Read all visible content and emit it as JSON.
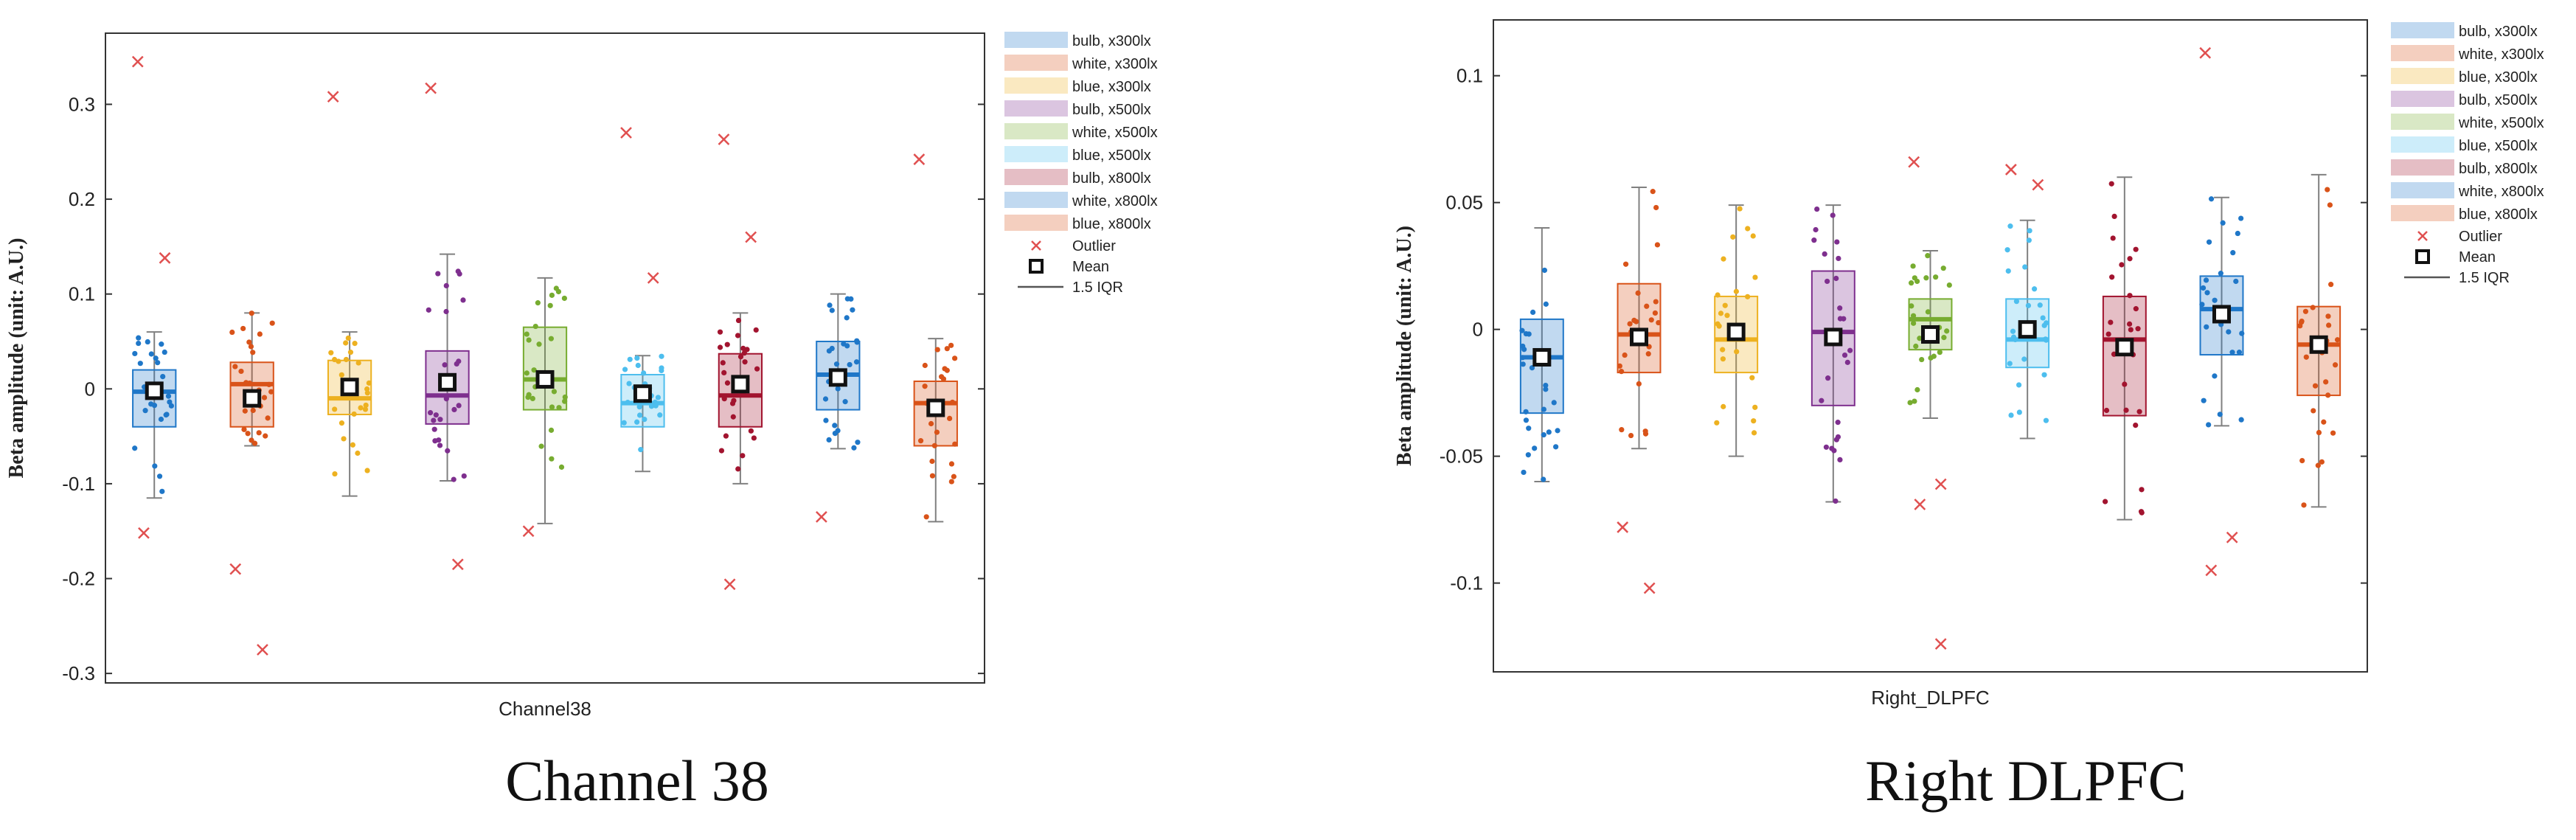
{
  "colors": {
    "bulb_x300lx": "#1f77c8",
    "white_x300lx": "#d95319",
    "blue_x300lx": "#edb120",
    "bulb_x500lx": "#7e2f8e",
    "white_x500lx": "#77ac30",
    "blue_x500lx": "#4dbeee",
    "bulb_x800lx": "#a2142f",
    "white_x800lx": "#1f77c8",
    "blue_x800lx": "#d95319",
    "outlier": "#e05050",
    "whisker": "#808080"
  },
  "chart_data": [
    {
      "type": "box",
      "caption": "Channel 38",
      "xlabel": "Channel38",
      "ylabel": "Beta amplitude (unit: A.U.)",
      "ylim": [
        -0.31,
        0.375
      ],
      "yticks": [
        -0.3,
        -0.2,
        -0.1,
        0,
        0.1,
        0.2,
        0.3
      ],
      "ytick_labels": [
        "-0.3",
        "-0.2",
        "-0.1",
        "0",
        "0.1",
        "0.2",
        "0.3"
      ],
      "legend": {
        "position": "right",
        "entries": [
          "bulb, x300lx",
          "white, x300lx",
          "blue, x300lx",
          "bulb, x500lx",
          "white, x500lx",
          "blue, x500lx",
          "bulb, x800lx",
          "white, x800lx",
          "blue, x800lx"
        ],
        "outlier_label": "Outlier",
        "mean_label": "Mean",
        "iqr_label": "1.5 IQR"
      },
      "series": [
        {
          "name": "bulb, x300lx",
          "q1": -0.04,
          "median": -0.003,
          "q3": 0.02,
          "whisker_low": -0.115,
          "whisker_high": 0.06,
          "mean": -0.002,
          "outliers": [
            0.345,
            0.138,
            -0.152
          ]
        },
        {
          "name": "white, x300lx",
          "q1": -0.04,
          "median": 0.005,
          "q3": 0.028,
          "whisker_low": -0.06,
          "whisker_high": 0.08,
          "mean": -0.01,
          "outliers": [
            -0.19,
            -0.275
          ]
        },
        {
          "name": "blue, x300lx",
          "q1": -0.027,
          "median": -0.01,
          "q3": 0.03,
          "whisker_low": -0.113,
          "whisker_high": 0.06,
          "mean": 0.002,
          "outliers": [
            0.308
          ]
        },
        {
          "name": "bulb, x500lx",
          "q1": -0.037,
          "median": -0.007,
          "q3": 0.04,
          "whisker_low": -0.097,
          "whisker_high": 0.142,
          "mean": 0.007,
          "outliers": [
            0.317,
            -0.185
          ]
        },
        {
          "name": "white, x500lx",
          "q1": -0.022,
          "median": 0.01,
          "q3": 0.065,
          "whisker_low": -0.142,
          "whisker_high": 0.117,
          "mean": 0.01,
          "outliers": [
            -0.15
          ]
        },
        {
          "name": "blue, x500lx",
          "q1": -0.04,
          "median": -0.015,
          "q3": 0.015,
          "whisker_low": -0.087,
          "whisker_high": 0.035,
          "mean": -0.005,
          "outliers": [
            0.27,
            0.117
          ]
        },
        {
          "name": "bulb, x800lx",
          "q1": -0.04,
          "median": -0.007,
          "q3": 0.037,
          "whisker_low": -0.1,
          "whisker_high": 0.08,
          "mean": 0.005,
          "outliers": [
            0.263,
            0.16,
            -0.206
          ]
        },
        {
          "name": "white, x800lx",
          "q1": -0.022,
          "median": 0.015,
          "q3": 0.05,
          "whisker_low": -0.063,
          "whisker_high": 0.1,
          "mean": 0.012,
          "outliers": [
            -0.135
          ]
        },
        {
          "name": "blue, x800lx",
          "q1": -0.06,
          "median": -0.015,
          "q3": 0.008,
          "whisker_low": -0.14,
          "whisker_high": 0.053,
          "mean": -0.02,
          "outliers": [
            0.242
          ]
        }
      ]
    },
    {
      "type": "box",
      "caption": "Right DLPFC",
      "xlabel": "Right_DLPFC",
      "ylabel": "Beta amplitude (unit: A.U.)",
      "ylim": [
        -0.135,
        0.122
      ],
      "yticks": [
        -0.1,
        -0.05,
        0,
        0.05,
        0.1
      ],
      "ytick_labels": [
        "-0.1",
        "-0.05",
        "0",
        "0.05",
        "0.1"
      ],
      "legend": {
        "position": "right",
        "entries": [
          "bulb, x300lx",
          "white, x300lx",
          "blue, x300lx",
          "bulb, x500lx",
          "white, x500lx",
          "blue, x500lx",
          "bulb, x800lx",
          "white, x800lx",
          "blue, x800lx"
        ],
        "outlier_label": "Outlier",
        "mean_label": "Mean",
        "iqr_label": "1.5 IQR"
      },
      "series": [
        {
          "name": "bulb, x300lx",
          "q1": -0.033,
          "median": -0.011,
          "q3": 0.004,
          "whisker_low": -0.06,
          "whisker_high": 0.04,
          "mean": -0.011,
          "outliers": []
        },
        {
          "name": "white, x300lx",
          "q1": -0.017,
          "median": -0.002,
          "q3": 0.018,
          "whisker_low": -0.047,
          "whisker_high": 0.056,
          "mean": -0.003,
          "outliers": [
            -0.078,
            -0.102
          ]
        },
        {
          "name": "blue, x300lx",
          "q1": -0.017,
          "median": -0.004,
          "q3": 0.013,
          "whisker_low": -0.05,
          "whisker_high": 0.049,
          "mean": -0.001,
          "outliers": []
        },
        {
          "name": "bulb, x500lx",
          "q1": -0.03,
          "median": -0.001,
          "q3": 0.023,
          "whisker_low": -0.068,
          "whisker_high": 0.049,
          "mean": -0.003,
          "outliers": []
        },
        {
          "name": "white, x500lx",
          "q1": -0.008,
          "median": 0.004,
          "q3": 0.012,
          "whisker_low": -0.035,
          "whisker_high": 0.031,
          "mean": -0.002,
          "outliers": [
            0.066,
            -0.061,
            -0.069,
            -0.124
          ]
        },
        {
          "name": "blue, x500lx",
          "q1": -0.015,
          "median": -0.004,
          "q3": 0.012,
          "whisker_low": -0.043,
          "whisker_high": 0.043,
          "mean": 0.0,
          "outliers": [
            0.063,
            0.057
          ]
        },
        {
          "name": "bulb, x800lx",
          "q1": -0.034,
          "median": -0.004,
          "q3": 0.013,
          "whisker_low": -0.075,
          "whisker_high": 0.06,
          "mean": -0.007,
          "outliers": []
        },
        {
          "name": "white, x800lx",
          "q1": -0.01,
          "median": 0.008,
          "q3": 0.021,
          "whisker_low": -0.038,
          "whisker_high": 0.052,
          "mean": 0.006,
          "outliers": [
            0.109,
            -0.082,
            -0.095
          ]
        },
        {
          "name": "blue, x800lx",
          "q1": -0.026,
          "median": -0.006,
          "q3": 0.009,
          "whisker_low": -0.07,
          "whisker_high": 0.061,
          "mean": -0.006,
          "outliers": []
        }
      ]
    }
  ]
}
